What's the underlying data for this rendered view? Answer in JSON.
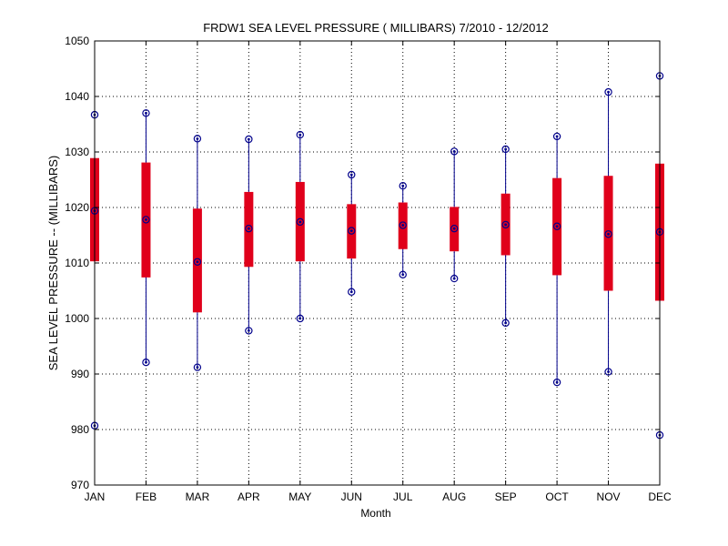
{
  "chart_data": {
    "type": "box",
    "title": "FRDW1  SEA LEVEL PRESSURE ( MILLIBARS) 7/2010 - 12/2012",
    "xlabel": "Month",
    "ylabel": "SEA LEVEL PRESSURE -- (MILLIBARS)",
    "ylim": [
      970,
      1050
    ],
    "yticks": [
      970,
      980,
      990,
      1000,
      1010,
      1020,
      1030,
      1040,
      1050
    ],
    "grid": true,
    "categories": [
      "JAN",
      "FEB",
      "MAR",
      "APR",
      "MAY",
      "JUN",
      "JUL",
      "AUG",
      "SEP",
      "OCT",
      "NOV",
      "DEC"
    ],
    "series": [
      {
        "name": "max",
        "values": [
          1036.7,
          1037.0,
          1032.4,
          1032.3,
          1033.1,
          1025.9,
          1023.9,
          1030.1,
          1030.5,
          1032.8,
          1040.8,
          1043.7
        ]
      },
      {
        "name": "q3",
        "values": [
          1028.9,
          1028.1,
          1019.8,
          1022.8,
          1024.6,
          1020.6,
          1020.9,
          1020.1,
          1022.5,
          1025.3,
          1025.7,
          1027.9
        ]
      },
      {
        "name": "median",
        "values": [
          1019.4,
          1017.8,
          1010.2,
          1016.2,
          1017.4,
          1015.8,
          1016.8,
          1016.2,
          1016.9,
          1016.6,
          1015.2,
          1015.6
        ]
      },
      {
        "name": "q1",
        "values": [
          1010.3,
          1007.4,
          1001.1,
          1009.3,
          1010.3,
          1010.8,
          1012.5,
          1012.1,
          1011.4,
          1007.8,
          1005.0,
          1003.2
        ]
      },
      {
        "name": "min",
        "values": [
          980.7,
          992.1,
          991.2,
          997.8,
          1000.0,
          1004.8,
          1007.9,
          1007.2,
          999.2,
          988.5,
          990.4,
          979.0
        ]
      }
    ],
    "colors": {
      "box": "#e0001b",
      "whisker": "#00008b",
      "marker": "#00008b",
      "grid": "#000000"
    }
  }
}
